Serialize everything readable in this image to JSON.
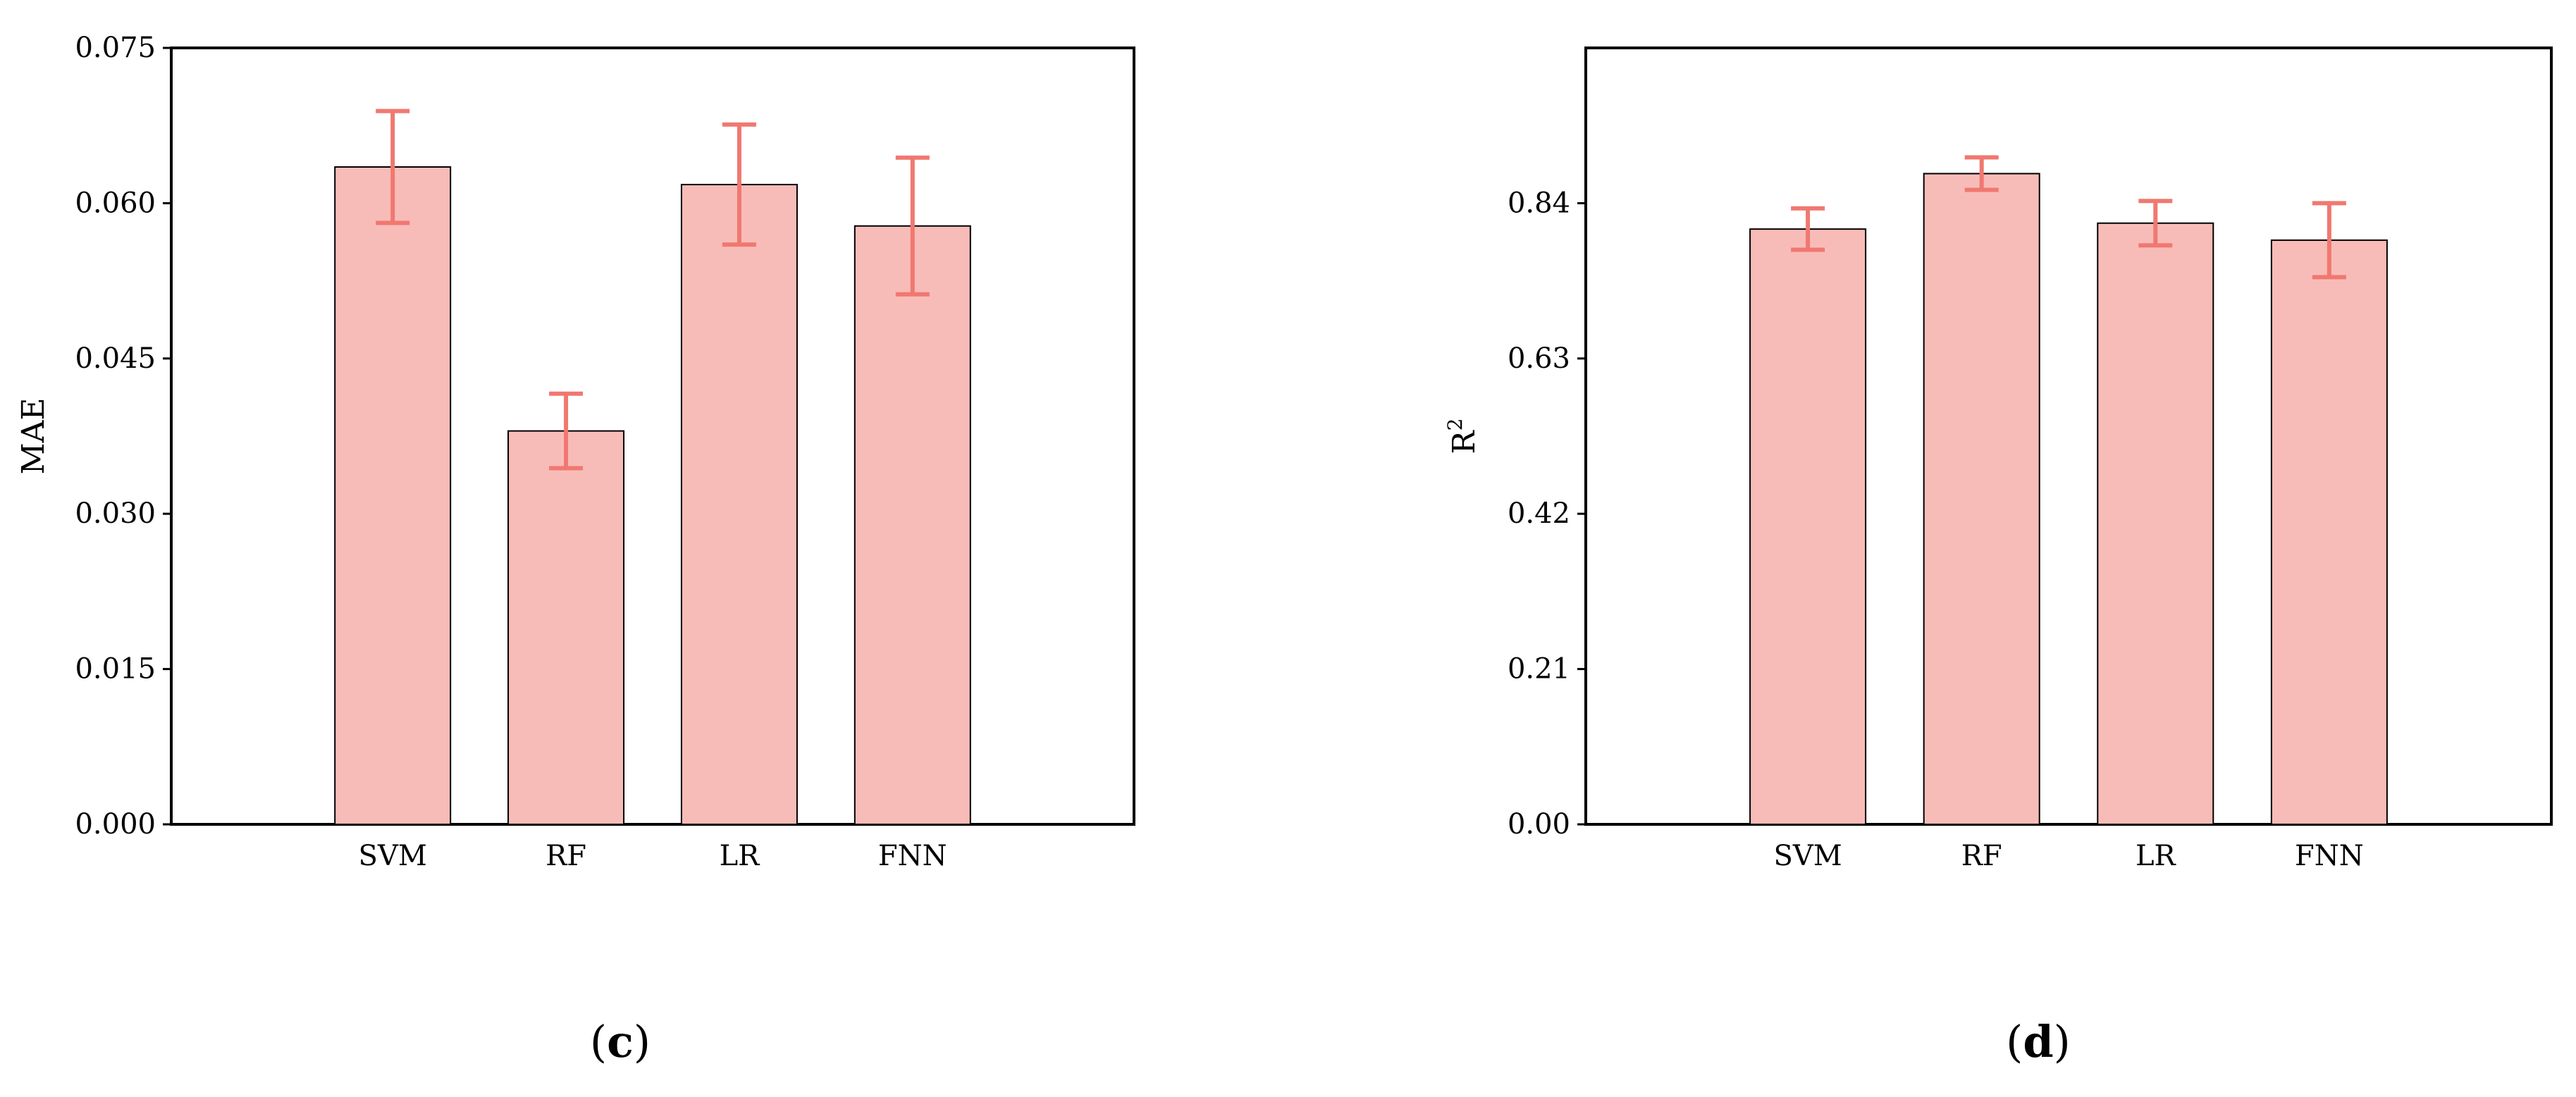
{
  "colors": {
    "bar_fill": "#f8bcb8",
    "bar_stroke": "#000000",
    "error": "#f07870",
    "axis": "#000000"
  },
  "chart_data": [
    {
      "type": "bar",
      "categories": [
        "SVM",
        "RF",
        "LR",
        "FNN"
      ],
      "values": [
        0.0635,
        0.038,
        0.0618,
        0.0578
      ],
      "errors": [
        0.0054,
        0.0036,
        0.0058,
        0.0066
      ],
      "ylabel": "MAE",
      "ylim": [
        0,
        0.075
      ],
      "yticks": [
        "0.000",
        "0.015",
        "0.030",
        "0.045",
        "0.060",
        "0.075"
      ],
      "panel_label": "c"
    },
    {
      "type": "bar",
      "categories": [
        "SVM",
        "RF",
        "LR",
        "FNN"
      ],
      "values": [
        0.805,
        0.88,
        0.813,
        0.79
      ],
      "errors": [
        0.028,
        0.022,
        0.03,
        0.05
      ],
      "ylabel": "R",
      "ylabel_sup": "2",
      "ylim": [
        0,
        1.05
      ],
      "yticks": [
        "0.00",
        "0.21",
        "0.42",
        "0.63",
        "0.84"
      ],
      "panel_label": "d"
    }
  ]
}
